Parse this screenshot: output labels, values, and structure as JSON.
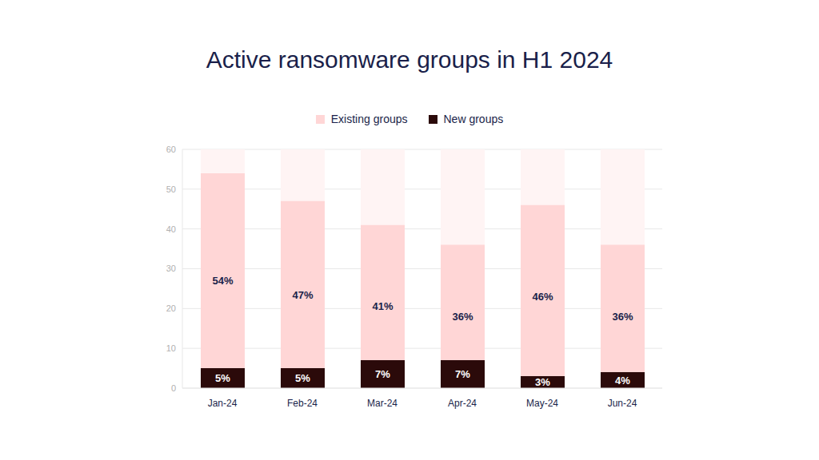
{
  "chart_data": {
    "type": "bar",
    "title": "Active ransomware groups in H1 2024",
    "categories": [
      "Jan-24",
      "Feb-24",
      "Mar-24",
      "Apr-24",
      "May-24",
      "Jun-24"
    ],
    "series": [
      {
        "name": "Existing groups",
        "color": "#ffd6d6",
        "values": [
          54,
          47,
          41,
          36,
          46,
          36
        ],
        "value_labels": [
          "54%",
          "47%",
          "41%",
          "36%",
          "46%",
          "36%"
        ]
      },
      {
        "name": "New groups",
        "color": "#2b0a0a",
        "values": [
          5,
          5,
          7,
          7,
          3,
          4
        ],
        "value_labels": [
          "5%",
          "5%",
          "7%",
          "7%",
          "3%",
          "4%"
        ]
      }
    ],
    "ylim": [
      0,
      60
    ],
    "yticks": [
      0,
      10,
      20,
      30,
      40,
      50,
      60
    ],
    "grid": true,
    "legend": "top",
    "stacked": false,
    "data_labels": true
  }
}
